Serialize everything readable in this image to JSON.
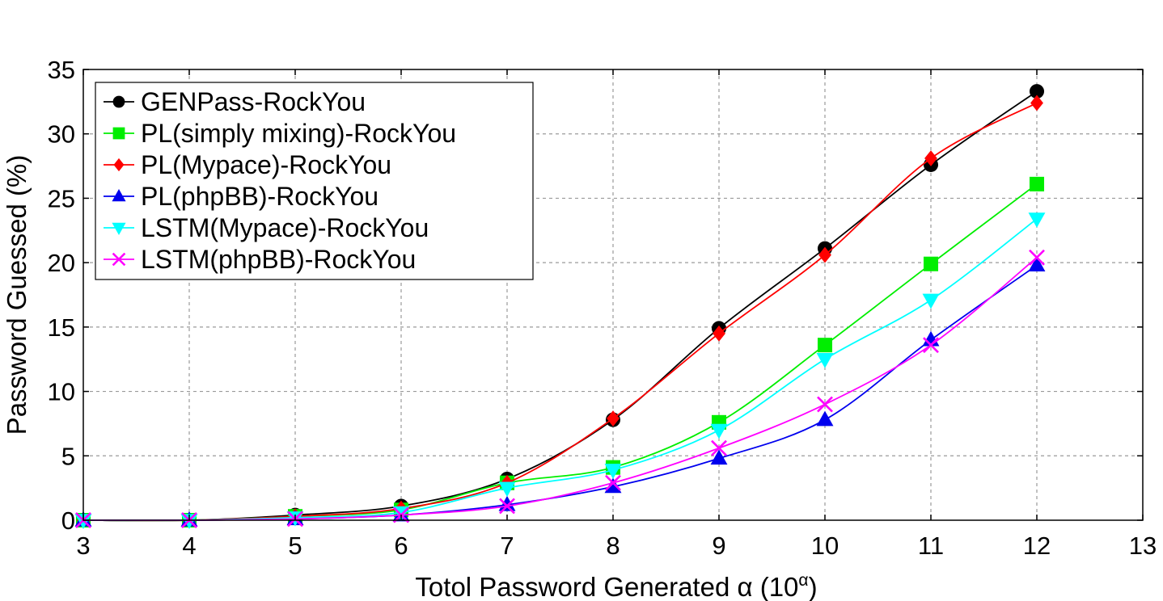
{
  "chart_data": {
    "type": "line",
    "title": "",
    "xlabel": "Totol Password Generated α (10",
    "xlabel_sup": "α",
    "xlabel_end": ")",
    "ylabel": "Password Guessed (%)",
    "xlim": [
      3,
      13
    ],
    "ylim": [
      0,
      35
    ],
    "x_ticks": [
      3,
      4,
      5,
      6,
      7,
      8,
      9,
      10,
      11,
      12,
      13
    ],
    "y_ticks": [
      0,
      5,
      10,
      15,
      20,
      25,
      30,
      35
    ],
    "grid": true,
    "legend_position": "top-left",
    "x": [
      3,
      4,
      5,
      6,
      7,
      8,
      9,
      10,
      11,
      12
    ],
    "series": [
      {
        "name": "GENPass-RockYou",
        "color": "#000000",
        "marker": "circle",
        "values": [
          0,
          0,
          0.4,
          1.1,
          3.2,
          7.8,
          14.9,
          21.1,
          27.6,
          33.3
        ]
      },
      {
        "name": "PL(simply mixing)-RockYou",
        "color": "#00ee00",
        "marker": "square",
        "values": [
          0,
          0,
          0.3,
          0.8,
          2.9,
          4.1,
          7.6,
          13.6,
          19.9,
          26.1
        ]
      },
      {
        "name": "PL(Mypace)-RockYou",
        "color": "#ff0000",
        "marker": "diamond",
        "values": [
          0,
          0,
          0.3,
          0.9,
          2.9,
          7.9,
          14.5,
          20.6,
          28.1,
          32.4
        ]
      },
      {
        "name": "PL(phpBB)-RockYou",
        "color": "#0000ee",
        "marker": "triangle-up",
        "values": [
          0,
          0,
          0.1,
          0.4,
          1.2,
          2.6,
          4.8,
          7.8,
          14.0,
          19.8
        ]
      },
      {
        "name": "LSTM(Mypace)-RockYou",
        "color": "#00ffff",
        "marker": "triangle-down",
        "values": [
          0,
          0,
          0.2,
          0.6,
          2.5,
          3.9,
          7.0,
          12.5,
          17.1,
          23.4
        ]
      },
      {
        "name": "LSTM(phpBB)-RockYou",
        "color": "#ff00ff",
        "marker": "x",
        "values": [
          0,
          0,
          0.1,
          0.4,
          1.1,
          2.9,
          5.6,
          9.0,
          13.6,
          20.4
        ]
      }
    ]
  }
}
